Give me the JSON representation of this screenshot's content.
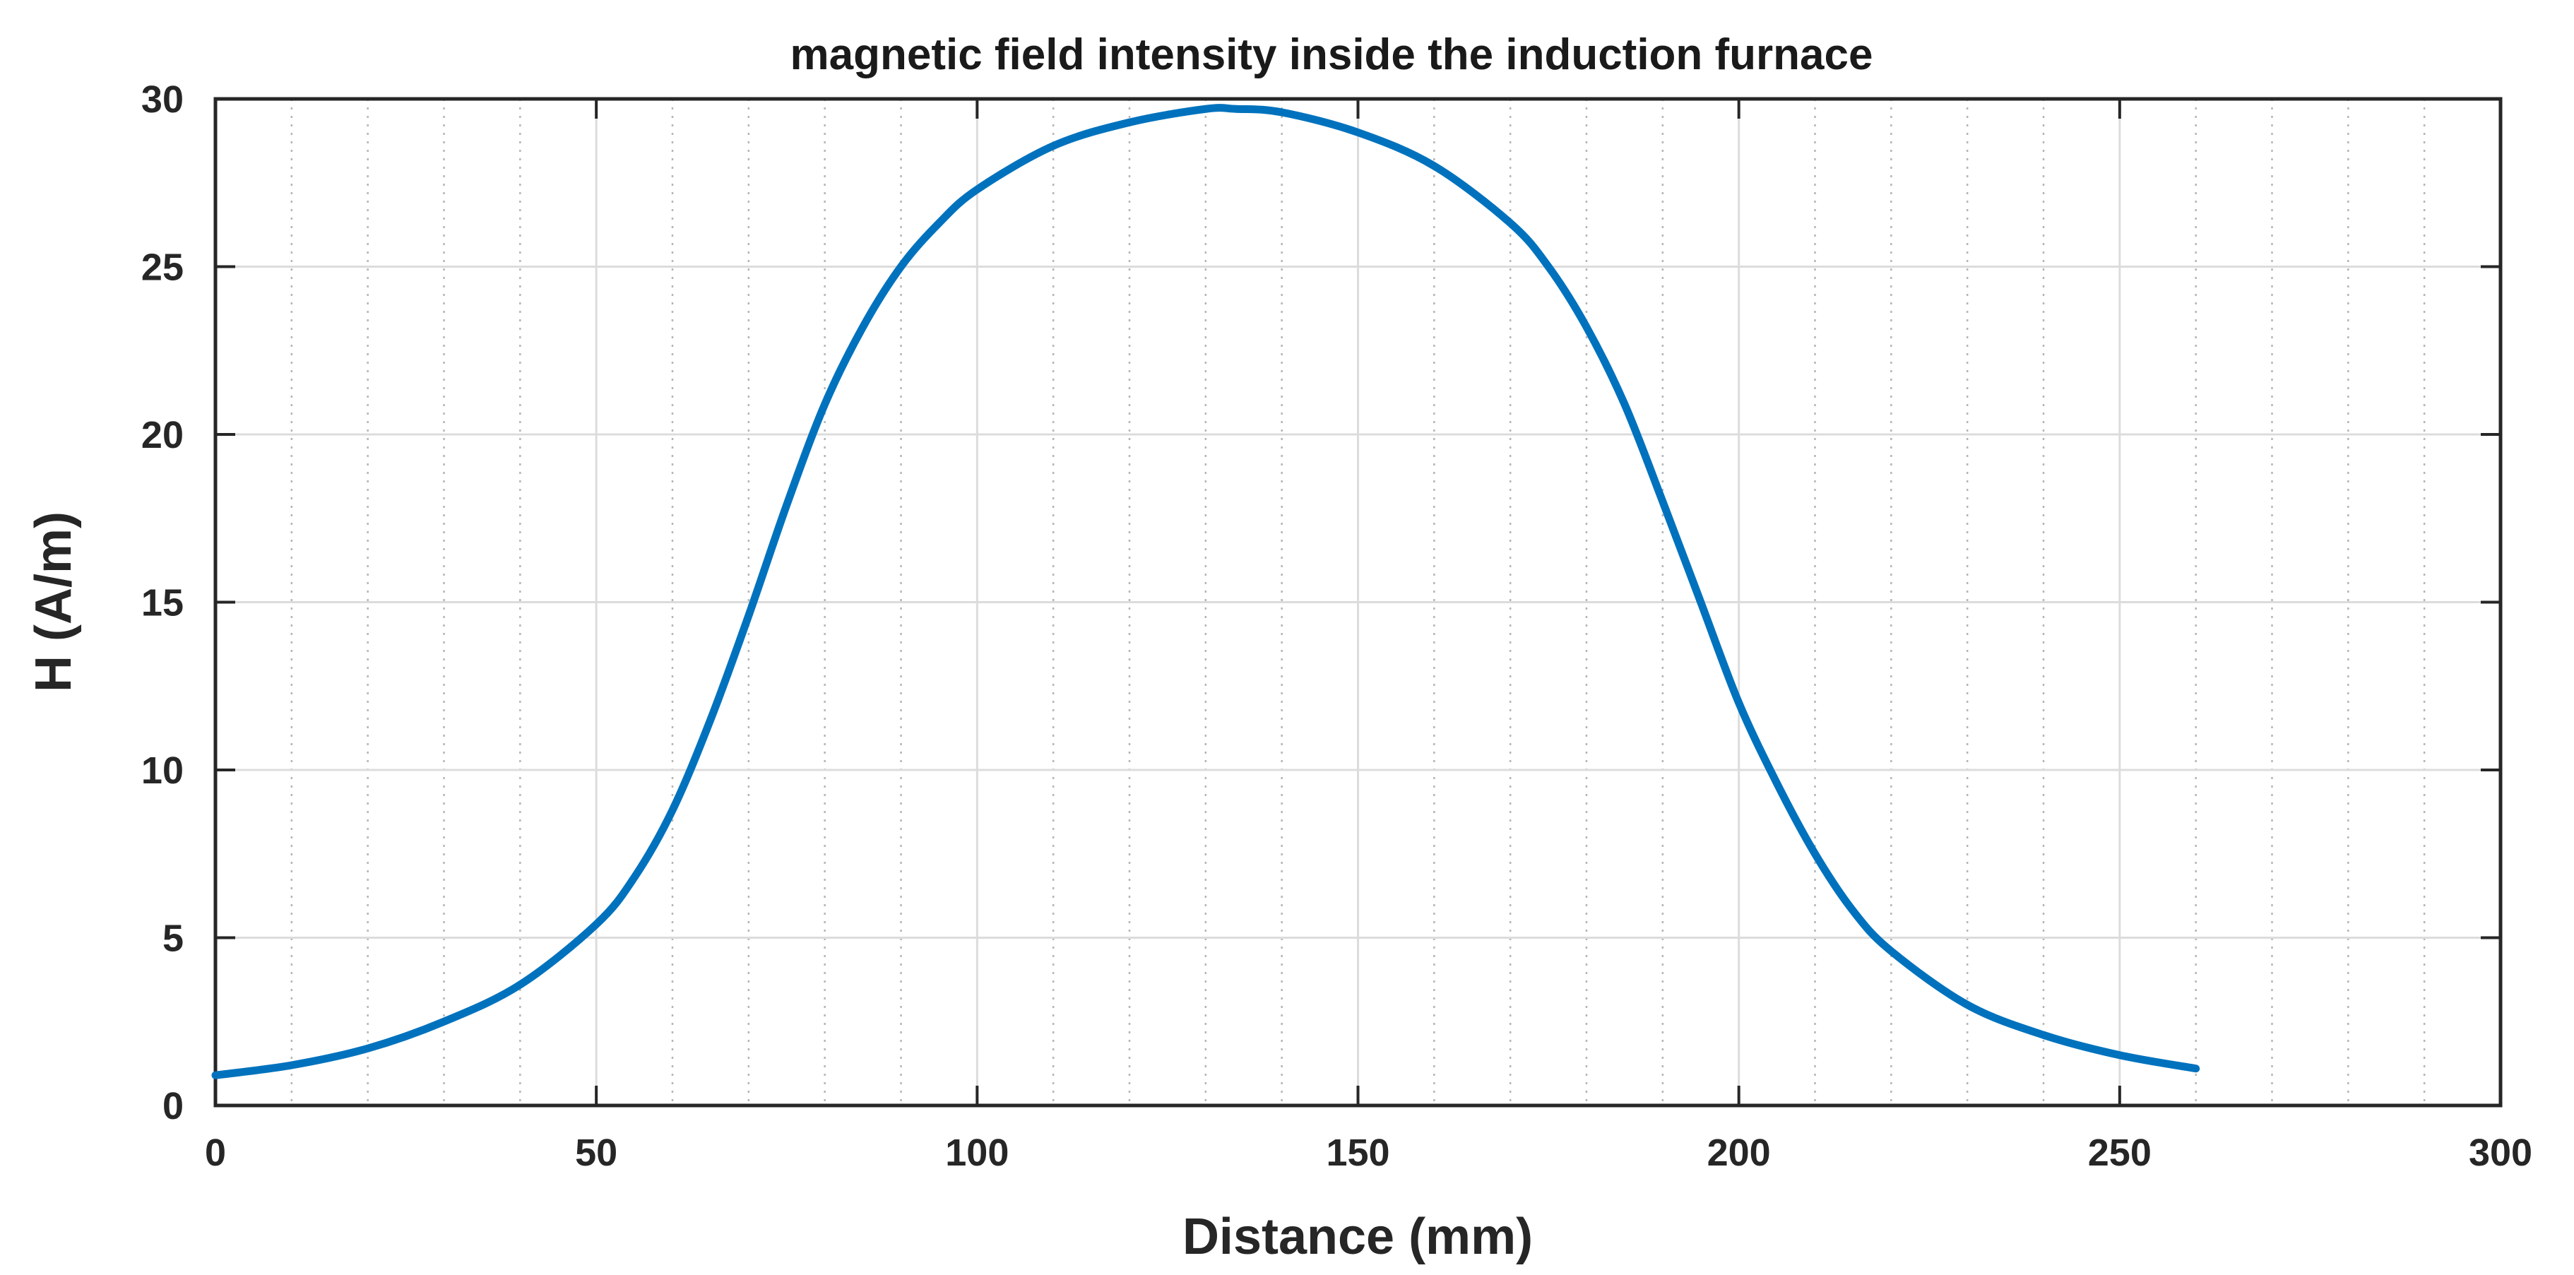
{
  "chart_data": {
    "type": "line",
    "title": "magnetic field intensity inside the induction furnace",
    "xlabel": "Distance (mm)",
    "ylabel": "H  (A/m)",
    "xlim": [
      0,
      300
    ],
    "ylim": [
      0,
      30
    ],
    "xticks": [
      0,
      50,
      100,
      150,
      200,
      250,
      300
    ],
    "yticks": [
      0,
      5,
      10,
      15,
      20,
      25,
      30
    ],
    "x_tick_labels": [
      "0",
      "50",
      "100",
      "150",
      "200",
      "250",
      "300"
    ],
    "y_tick_labels": [
      "0",
      "5",
      "10",
      "15",
      "20",
      "25",
      "30"
    ],
    "grid": true,
    "minor_grid": true,
    "line_color": "#0072BD",
    "series": [
      {
        "x": [
          0,
          10,
          20,
          30,
          40,
          50,
          55,
          60,
          65,
          70,
          75,
          80,
          85,
          90,
          95,
          100,
          110,
          120,
          130,
          134,
          140,
          150,
          160,
          170,
          175,
          180,
          185,
          190,
          195,
          200,
          205,
          210,
          215,
          220,
          230,
          240,
          250,
          260
        ],
        "y": [
          0.9,
          1.2,
          1.7,
          2.5,
          3.6,
          5.4,
          6.8,
          8.8,
          11.5,
          14.6,
          17.9,
          20.9,
          23.2,
          25.0,
          26.3,
          27.3,
          28.6,
          29.3,
          29.7,
          29.7,
          29.6,
          29.0,
          28.0,
          26.3,
          25.0,
          23.2,
          20.9,
          18.0,
          15.0,
          12.0,
          9.6,
          7.5,
          5.8,
          4.6,
          3.0,
          2.1,
          1.5,
          1.1
        ]
      }
    ]
  }
}
